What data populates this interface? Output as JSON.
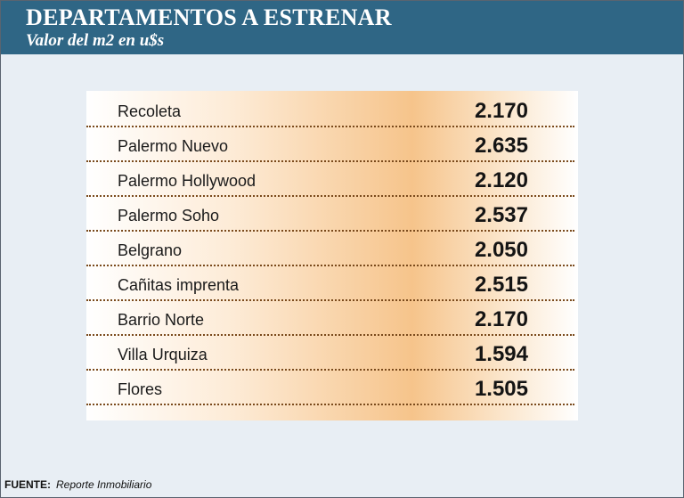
{
  "header": {
    "title": "DEPARTAMENTOS A ESTRENAR",
    "subtitle": "Valor del m2 en u$s"
  },
  "chart_data": {
    "type": "table",
    "title": "DEPARTAMENTOS A ESTRENAR",
    "subtitle": "Valor del m2 en u$s",
    "rows": [
      {
        "label": "Recoleta",
        "display": "2.170",
        "value": 2170
      },
      {
        "label": "Palermo Nuevo",
        "display": "2.635",
        "value": 2635
      },
      {
        "label": "Palermo Hollywood",
        "display": "2.120",
        "value": 2120
      },
      {
        "label": "Palermo Soho",
        "display": "2.537",
        "value": 2537
      },
      {
        "label": "Belgrano",
        "display": "2.050",
        "value": 2050
      },
      {
        "label": "Cañitas imprenta",
        "display": "2.515",
        "value": 2515
      },
      {
        "label": "Barrio Norte",
        "display": "2.170",
        "value": 2170
      },
      {
        "label": "Villa Urquiza",
        "display": "1.594",
        "value": 1594
      },
      {
        "label": "Flores",
        "display": "1.505",
        "value": 1505
      }
    ]
  },
  "footer": {
    "source_label": "FUENTE:",
    "source_text": "Reporte Inmobiliario"
  },
  "colors": {
    "header_bg": "#2f6685",
    "accent_orange": "#f6c48b",
    "dotted_separator": "#7a4a1c"
  }
}
